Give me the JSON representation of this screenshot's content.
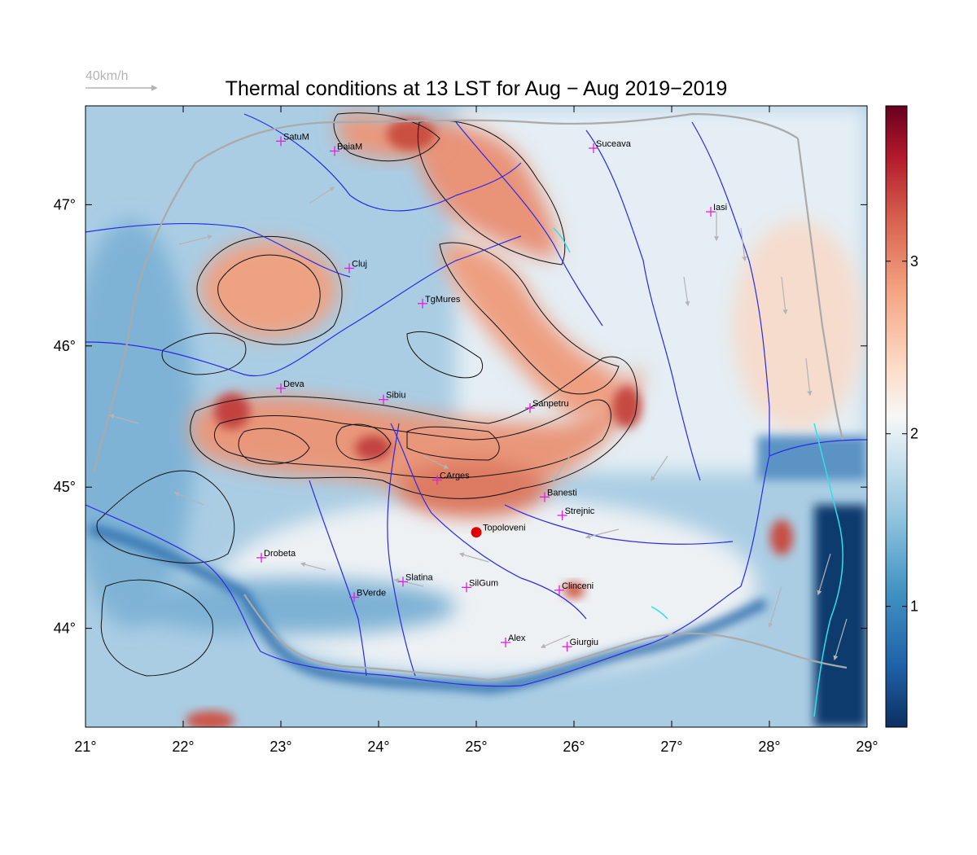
{
  "title": "Thermal conditions at 13 LST for Aug − Aug  2019−2019",
  "reference_vector": {
    "label": "40km/h"
  },
  "colors": {
    "river": "#2a2ae6",
    "border": "#aaaaaa",
    "contour": "#111111",
    "lake": "#2fe0e8",
    "marker": "#e020e0",
    "highlight": "#e00000",
    "vector": "#b4b4b4"
  },
  "map": {
    "lon_range": [
      21,
      29
    ],
    "lat_range": [
      43.3,
      47.7
    ],
    "x_tick_labels": [
      "21°",
      "22°",
      "23°",
      "24°",
      "25°",
      "26°",
      "27°",
      "28°",
      "29°"
    ],
    "y_tick_labels": [
      "44°",
      "45°",
      "46°",
      "47°"
    ]
  },
  "colorbar": {
    "range": [
      0.3,
      3.9
    ],
    "tick_labels": [
      "1",
      "2",
      "3"
    ]
  },
  "cities": [
    {
      "name": "SatuM",
      "lon": 23.0,
      "lat": 47.45
    },
    {
      "name": "BaiaM",
      "lon": 23.55,
      "lat": 47.38
    },
    {
      "name": "Suceava",
      "lon": 26.2,
      "lat": 47.4
    },
    {
      "name": "Iasi",
      "lon": 27.4,
      "lat": 46.95
    },
    {
      "name": "Cluj",
      "lon": 23.7,
      "lat": 46.55
    },
    {
      "name": "TgMures",
      "lon": 24.45,
      "lat": 46.3
    },
    {
      "name": "Deva",
      "lon": 23.0,
      "lat": 45.7
    },
    {
      "name": "Sibiu",
      "lon": 24.05,
      "lat": 45.62
    },
    {
      "name": "Sanpetru",
      "lon": 25.55,
      "lat": 45.56
    },
    {
      "name": "CArges",
      "lon": 24.6,
      "lat": 45.05
    },
    {
      "name": "Banesti",
      "lon": 25.7,
      "lat": 44.93
    },
    {
      "name": "Strejnic",
      "lon": 25.88,
      "lat": 44.8
    },
    {
      "name": "Drobeta",
      "lon": 22.8,
      "lat": 44.5
    },
    {
      "name": "Slatina",
      "lon": 24.25,
      "lat": 44.33
    },
    {
      "name": "SilGum",
      "lon": 24.9,
      "lat": 44.29
    },
    {
      "name": "Clinceni",
      "lon": 25.85,
      "lat": 44.27
    },
    {
      "name": "BVerde",
      "lon": 23.75,
      "lat": 44.22
    },
    {
      "name": "Alex",
      "lon": 25.3,
      "lat": 43.9
    },
    {
      "name": "Giurgiu",
      "lon": 25.93,
      "lat": 43.87
    }
  ],
  "highlight_site": {
    "name": "Topoloveni",
    "lon": 25.0,
    "lat": 44.68
  }
}
